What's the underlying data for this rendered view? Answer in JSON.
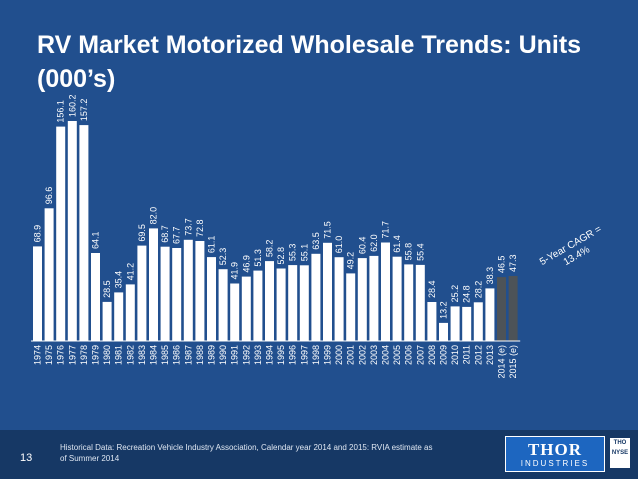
{
  "title": "RV Market Motorized Wholesale Trends: Units (000’s)",
  "page_number": "13",
  "footnote": "Historical Data: Recreation Vehicle Industry Association, Calendar year 2014 and 2015: RVIA estimate as of Summer 2014",
  "logo": {
    "main": "THOR",
    "sub": "INDUSTRIES",
    "exchange_top": "THO",
    "exchange_bottom": "NYSE"
  },
  "colors": {
    "background": "#214f8e",
    "bar_historical": "#ffffff",
    "bar_estimate": "#4d5358",
    "footer": "#163865",
    "text": "#ffffff"
  },
  "chart_data": {
    "type": "bar",
    "title": "RV Market Motorized Wholesale Trends: Units (000’s)",
    "categories": [
      "1974",
      "1975",
      "1976",
      "1977",
      "1978",
      "1979",
      "1980",
      "1981",
      "1982",
      "1983",
      "1984",
      "1985",
      "1986",
      "1987",
      "1988",
      "1989",
      "1990",
      "1991",
      "1992",
      "1993",
      "1994",
      "1995",
      "1996",
      "1997",
      "1998",
      "1999",
      "2000",
      "2001",
      "2002",
      "2003",
      "2004",
      "2005",
      "2006",
      "2007",
      "2008",
      "2009",
      "2010",
      "2011",
      "2012",
      "2013",
      "2014 (e)",
      "2015 (e)"
    ],
    "values": [
      68.9,
      96.6,
      156.1,
      160.2,
      157.2,
      64.1,
      28.5,
      35.4,
      41.2,
      69.5,
      82.0,
      68.7,
      67.7,
      73.7,
      72.8,
      61.1,
      52.3,
      41.9,
      46.9,
      51.3,
      58.2,
      52.8,
      55.3,
      55.1,
      63.5,
      71.5,
      61.0,
      49.2,
      60.4,
      62.0,
      71.7,
      61.4,
      55.8,
      55.4,
      28.4,
      13.2,
      25.2,
      24.8,
      28.2,
      38.3,
      46.5,
      47.3
    ],
    "value_labels": [
      "68.9",
      "96.6",
      "156.1",
      "160.2",
      "157.2",
      "64.1",
      "28.5",
      "35.4",
      "41.2",
      "69.5",
      "82.0",
      "68.7",
      "67.7",
      "73.7",
      "72.8",
      "61.1",
      "52.3",
      "41.9",
      "46.9",
      "51.3",
      "58.2",
      "52.8",
      "55.3",
      "55.1",
      "63.5",
      "71.5",
      "61.0",
      "49.2",
      "60.4",
      "62.0",
      "71.7",
      "61.4",
      "55.8",
      "55.4",
      "28.4",
      "13.2",
      "25.2",
      "24.8",
      "28.2",
      "38.3",
      "46.5",
      "47.3"
    ],
    "estimate_categories": [
      "2014 (e)",
      "2015 (e)"
    ],
    "annotation": "5-Year CAGR = 13.4%",
    "xlabel": "",
    "ylabel": "",
    "ylim": [
      0,
      165
    ],
    "grid": false,
    "legend": "none"
  }
}
